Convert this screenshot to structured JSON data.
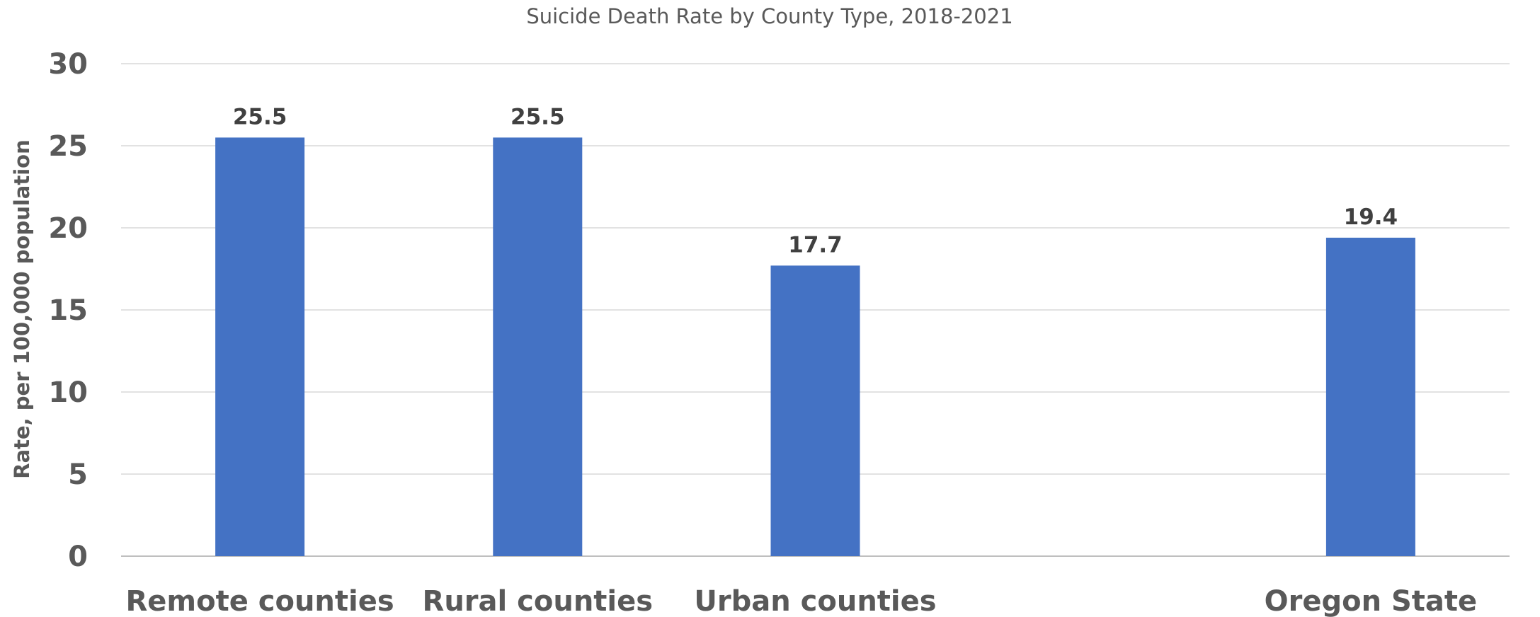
{
  "chart_data": {
    "type": "bar",
    "title": "Suicide Death Rate by County Type, 2018-2021",
    "xlabel": "",
    "ylabel": "Rate, per 100,000 population",
    "categories": [
      "Remote counties",
      "Rural counties",
      "Urban counties",
      "",
      "Oregon State"
    ],
    "values": [
      25.5,
      25.5,
      17.7,
      null,
      19.4
    ],
    "data_labels": [
      "25.5",
      "25.5",
      "17.7",
      "",
      "19.4"
    ],
    "yticks": [
      "0",
      "5",
      "10",
      "15",
      "20",
      "25",
      "30"
    ],
    "ylim": [
      0,
      30
    ],
    "grid": true,
    "legend": "none",
    "colors": {
      "bar": "#4472c4"
    }
  }
}
